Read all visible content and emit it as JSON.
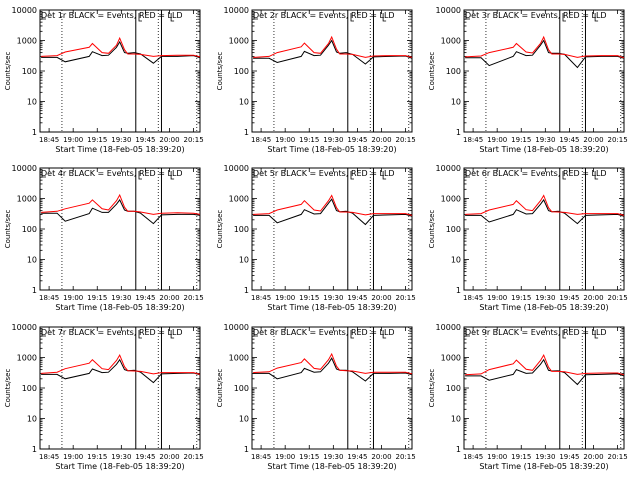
{
  "figure": {
    "ylabel": "Counts/sec",
    "xlabel": "Start Time (18-Feb-05 18:39:20)"
  },
  "colors": {
    "events": "#000000",
    "lld": "#ff0000",
    "axes": "#000000"
  },
  "chart_data": [
    {
      "type": "line",
      "title": "Det 1r BLACK = Events, RED = LLD",
      "xlabel": "Start Time (18-Feb-05 18:39:20)",
      "ylabel": "Counts/sec",
      "y_scale": "log",
      "ylim": [
        1,
        10000
      ],
      "x_tick_labels": [
        "18:45",
        "19:00",
        "19:15",
        "19:30",
        "19:45",
        "20:00",
        "20:15"
      ],
      "y_tick_labels": [
        "1",
        "10",
        "100",
        "1000",
        "10000"
      ],
      "x": [
        "18:40",
        "18:50",
        "18:55",
        "19:10",
        "19:12",
        "19:18",
        "19:22",
        "19:27",
        "19:29",
        "19:32",
        "19:34",
        "19:38",
        "19:42",
        "19:50",
        "19:55",
        "20:05",
        "20:15",
        "20:19"
      ],
      "series": [
        {
          "name": "Events",
          "values": [
            280,
            280,
            200,
            300,
            430,
            320,
            330,
            600,
            900,
            400,
            380,
            400,
            360,
            180,
            300,
            300,
            320,
            270
          ]
        },
        {
          "name": "LLD",
          "values": [
            300,
            320,
            420,
            600,
            800,
            400,
            380,
            700,
            1200,
            500,
            360,
            360,
            350,
            300,
            320,
            330,
            330,
            290
          ]
        }
      ]
    },
    {
      "type": "line",
      "title": "Det 2r BLACK = Events, RED = LLD",
      "xlabel": "Start Time (18-Feb-05 18:39:20)",
      "ylabel": "Counts/sec",
      "y_scale": "log",
      "ylim": [
        1,
        10000
      ],
      "x_tick_labels": [
        "18:45",
        "19:00",
        "19:15",
        "19:30",
        "19:45",
        "20:00",
        "20:15"
      ],
      "y_tick_labels": [
        "1",
        "10",
        "100",
        "1000",
        "10000"
      ],
      "x": [
        "18:40",
        "18:50",
        "18:55",
        "19:10",
        "19:12",
        "19:18",
        "19:22",
        "19:27",
        "19:29",
        "19:32",
        "19:34",
        "19:38",
        "19:42",
        "19:50",
        "19:55",
        "20:05",
        "20:15",
        "20:19"
      ],
      "series": [
        {
          "name": "Events",
          "values": [
            260,
            260,
            190,
            300,
            440,
            320,
            330,
            700,
            1000,
            420,
            380,
            400,
            350,
            170,
            290,
            300,
            310,
            260
          ]
        },
        {
          "name": "LLD",
          "values": [
            280,
            300,
            400,
            620,
            820,
            400,
            380,
            800,
            1300,
            520,
            360,
            360,
            350,
            280,
            310,
            320,
            320,
            280
          ]
        }
      ]
    },
    {
      "type": "line",
      "title": "Det 3r BLACK = Events, RED = LLD",
      "xlabel": "Start Time (18-Feb-05 18:39:20)",
      "ylabel": "Counts/sec",
      "y_scale": "log",
      "ylim": [
        1,
        10000
      ],
      "x_tick_labels": [
        "18:45",
        "19:00",
        "19:15",
        "19:30",
        "19:45",
        "20:00",
        "20:15"
      ],
      "y_tick_labels": [
        "1",
        "10",
        "100",
        "1000",
        "10000"
      ],
      "x": [
        "18:40",
        "18:50",
        "18:55",
        "19:10",
        "19:12",
        "19:18",
        "19:22",
        "19:27",
        "19:29",
        "19:32",
        "19:34",
        "19:38",
        "19:42",
        "19:50",
        "19:55",
        "20:05",
        "20:15",
        "20:19"
      ],
      "series": [
        {
          "name": "Events",
          "values": [
            270,
            270,
            150,
            300,
            430,
            320,
            330,
            700,
            1000,
            400,
            380,
            380,
            350,
            130,
            290,
            300,
            300,
            260
          ]
        },
        {
          "name": "LLD",
          "values": [
            290,
            310,
            400,
            600,
            800,
            420,
            390,
            800,
            1300,
            500,
            360,
            360,
            350,
            280,
            310,
            320,
            320,
            270
          ]
        }
      ]
    },
    {
      "type": "line",
      "title": "Det 4r BLACK = Events, RED = LLD",
      "xlabel": "Start Time (18-Feb-05 18:39:20)",
      "ylabel": "Counts/sec",
      "y_scale": "log",
      "ylim": [
        1,
        10000
      ],
      "x_tick_labels": [
        "18:45",
        "19:00",
        "19:15",
        "19:30",
        "19:45",
        "20:00",
        "20:15"
      ],
      "y_tick_labels": [
        "1",
        "10",
        "100",
        "1000",
        "10000"
      ],
      "x": [
        "18:40",
        "18:50",
        "18:55",
        "19:10",
        "19:12",
        "19:18",
        "19:22",
        "19:27",
        "19:29",
        "19:32",
        "19:34",
        "19:38",
        "19:42",
        "19:50",
        "19:55",
        "20:05",
        "20:15",
        "20:19"
      ],
      "series": [
        {
          "name": "Events",
          "values": [
            330,
            330,
            180,
            320,
            480,
            350,
            350,
            650,
            900,
            420,
            380,
            380,
            330,
            150,
            290,
            300,
            300,
            280
          ]
        },
        {
          "name": "LLD",
          "values": [
            350,
            380,
            460,
            700,
            900,
            460,
            420,
            850,
            1300,
            520,
            380,
            380,
            360,
            300,
            330,
            340,
            330,
            300
          ]
        }
      ]
    },
    {
      "type": "line",
      "title": "Det 5r BLACK = Events, RED = LLD",
      "xlabel": "Start Time (18-Feb-05 18:39:20)",
      "ylabel": "Counts/sec",
      "y_scale": "log",
      "ylim": [
        1,
        10000
      ],
      "x_tick_labels": [
        "18:45",
        "19:00",
        "19:15",
        "19:30",
        "19:45",
        "20:00",
        "20:15"
      ],
      "y_tick_labels": [
        "1",
        "10",
        "100",
        "1000",
        "10000"
      ],
      "x": [
        "18:40",
        "18:50",
        "18:55",
        "19:10",
        "19:12",
        "19:18",
        "19:22",
        "19:27",
        "19:29",
        "19:32",
        "19:34",
        "19:38",
        "19:42",
        "19:50",
        "19:55",
        "20:05",
        "20:15",
        "20:19"
      ],
      "series": [
        {
          "name": "Events",
          "values": [
            280,
            280,
            160,
            300,
            430,
            310,
            320,
            700,
            950,
            400,
            370,
            380,
            330,
            140,
            280,
            290,
            300,
            260
          ]
        },
        {
          "name": "LLD",
          "values": [
            300,
            320,
            420,
            640,
            850,
            420,
            390,
            850,
            1250,
            500,
            360,
            360,
            350,
            290,
            320,
            320,
            320,
            280
          ]
        }
      ]
    },
    {
      "type": "line",
      "title": "Det 6r BLACK = Events, RED = LLD",
      "xlabel": "Start Time (18-Feb-05 18:39:20)",
      "ylabel": "Counts/sec",
      "y_scale": "log",
      "ylim": [
        1,
        10000
      ],
      "x_tick_labels": [
        "18:45",
        "19:00",
        "19:15",
        "19:30",
        "19:45",
        "20:00",
        "20:15"
      ],
      "y_tick_labels": [
        "1",
        "10",
        "100",
        "1000",
        "10000"
      ],
      "x": [
        "18:40",
        "18:50",
        "18:55",
        "19:10",
        "19:12",
        "19:18",
        "19:22",
        "19:27",
        "19:29",
        "19:32",
        "19:34",
        "19:38",
        "19:42",
        "19:50",
        "19:55",
        "20:05",
        "20:15",
        "20:19"
      ],
      "series": [
        {
          "name": "Events",
          "values": [
            280,
            280,
            170,
            300,
            430,
            310,
            320,
            650,
            900,
            400,
            370,
            380,
            330,
            150,
            280,
            290,
            300,
            260
          ]
        },
        {
          "name": "LLD",
          "values": [
            300,
            320,
            420,
            640,
            850,
            430,
            400,
            850,
            1250,
            500,
            370,
            360,
            350,
            300,
            320,
            320,
            320,
            280
          ]
        }
      ]
    },
    {
      "type": "line",
      "title": "Det 7r BLACK = Events, RED = LLD",
      "xlabel": "Start Time (18-Feb-05 18:39:20)",
      "ylabel": "Counts/sec",
      "y_scale": "log",
      "ylim": [
        1,
        10000
      ],
      "x_tick_labels": [
        "18:45",
        "19:00",
        "19:15",
        "19:30",
        "19:45",
        "20:00",
        "20:15"
      ],
      "y_tick_labels": [
        "1",
        "10",
        "100",
        "1000",
        "10000"
      ],
      "x": [
        "18:40",
        "18:50",
        "18:55",
        "19:10",
        "19:12",
        "19:18",
        "19:22",
        "19:27",
        "19:29",
        "19:32",
        "19:34",
        "19:38",
        "19:42",
        "19:50",
        "19:55",
        "20:05",
        "20:15",
        "20:19"
      ],
      "series": [
        {
          "name": "Events",
          "values": [
            280,
            280,
            200,
            300,
            420,
            320,
            330,
            600,
            850,
            400,
            370,
            380,
            330,
            150,
            290,
            300,
            310,
            270
          ]
        },
        {
          "name": "LLD",
          "values": [
            300,
            330,
            430,
            650,
            850,
            430,
            400,
            800,
            1200,
            500,
            370,
            360,
            350,
            290,
            320,
            320,
            320,
            280
          ]
        }
      ]
    },
    {
      "type": "line",
      "title": "Det 8r BLACK = Events, RED = LLD",
      "xlabel": "Start Time (18-Feb-05 18:39:20)",
      "ylabel": "Counts/sec",
      "y_scale": "log",
      "ylim": [
        1,
        10000
      ],
      "x_tick_labels": [
        "18:45",
        "19:00",
        "19:15",
        "19:30",
        "19:45",
        "20:00",
        "20:15"
      ],
      "y_tick_labels": [
        "1",
        "10",
        "100",
        "1000",
        "10000"
      ],
      "x": [
        "18:40",
        "18:50",
        "18:55",
        "19:10",
        "19:12",
        "19:18",
        "19:22",
        "19:27",
        "19:29",
        "19:32",
        "19:34",
        "19:38",
        "19:42",
        "19:50",
        "19:55",
        "20:05",
        "20:15",
        "20:19"
      ],
      "series": [
        {
          "name": "Events",
          "values": [
            300,
            300,
            200,
            320,
            440,
            330,
            340,
            650,
            950,
            420,
            380,
            380,
            340,
            170,
            300,
            300,
            310,
            270
          ]
        },
        {
          "name": "LLD",
          "values": [
            320,
            340,
            450,
            680,
            900,
            440,
            410,
            850,
            1300,
            520,
            380,
            370,
            360,
            300,
            330,
            330,
            330,
            290
          ]
        }
      ]
    },
    {
      "type": "line",
      "title": "Det 9r BLACK = Events, RED = LLD",
      "xlabel": "Start Time (18-Feb-05 18:39:20)",
      "ylabel": "Counts/sec",
      "y_scale": "log",
      "ylim": [
        1,
        10000
      ],
      "x_tick_labels": [
        "18:45",
        "19:00",
        "19:15",
        "19:30",
        "19:45",
        "20:00",
        "20:15"
      ],
      "y_tick_labels": [
        "1",
        "10",
        "100",
        "1000",
        "10000"
      ],
      "x": [
        "18:40",
        "18:50",
        "18:55",
        "19:10",
        "19:12",
        "19:18",
        "19:22",
        "19:27",
        "19:29",
        "19:32",
        "19:34",
        "19:38",
        "19:42",
        "19:50",
        "19:55",
        "20:05",
        "20:15",
        "20:19"
      ],
      "series": [
        {
          "name": "Events",
          "values": [
            250,
            250,
            180,
            280,
            400,
            300,
            310,
            600,
            850,
            380,
            360,
            370,
            320,
            130,
            270,
            280,
            290,
            250
          ]
        },
        {
          "name": "LLD",
          "values": [
            270,
            290,
            400,
            620,
            820,
            410,
            380,
            800,
            1200,
            480,
            350,
            350,
            340,
            280,
            300,
            310,
            310,
            270
          ]
        }
      ]
    }
  ]
}
